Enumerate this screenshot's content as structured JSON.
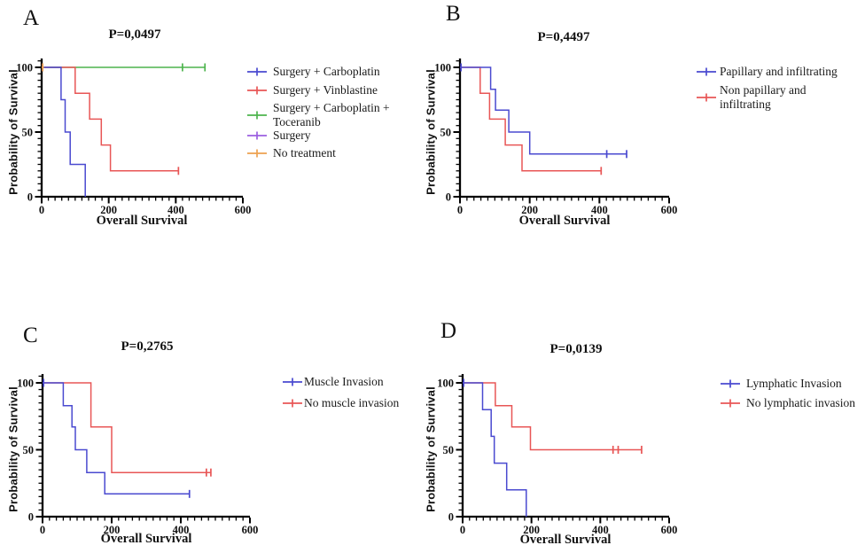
{
  "figure": {
    "background": "#ffffff",
    "axis_color": "#000000",
    "description_fields": {
      "x_axis_title": "Overall Survival",
      "y_axis_title": "Probability of Survival"
    }
  },
  "chart_data": [
    {
      "type": "line",
      "subtype": "kaplan-meier-step",
      "panel": "A",
      "letter": "A",
      "title": "P=0,0497",
      "xlabel": "Overall Survival",
      "ylabel": "Probability of Survival",
      "xlim": [
        0,
        600
      ],
      "ylim": [
        0,
        100
      ],
      "xticks": [
        0,
        200,
        400,
        600
      ],
      "yticks": [
        0,
        50,
        100
      ],
      "x_minor_step": 20,
      "y_minor_step": 5,
      "grid": false,
      "legend_position": "right",
      "legend": [
        {
          "label": "Surgery + Carboplatin",
          "color": "#4a4ad0"
        },
        {
          "label": "Surgery + Vinblastine",
          "color": "#e85656"
        },
        {
          "label": "Surgery + Carboplatin +\nToceranib",
          "color": "#4db44d"
        },
        {
          "label": "Surgery",
          "color": "#9b5fe0"
        },
        {
          "label": "No treatment",
          "color": "#eda14f"
        }
      ],
      "series": [
        {
          "name": "Surgery + Carboplatin + Toceranib",
          "color": "#4db44d",
          "points": [
            [
              0,
              100
            ],
            [
              487,
              100
            ]
          ],
          "censors": [
            [
              420,
              100
            ],
            [
              487,
              100
            ]
          ]
        },
        {
          "name": "Surgery + Vinblastine",
          "color": "#e85656",
          "points": [
            [
              0,
              100
            ],
            [
              100,
              100
            ],
            [
              100,
              80
            ],
            [
              143,
              80
            ],
            [
              143,
              60
            ],
            [
              178,
              60
            ],
            [
              178,
              40
            ],
            [
              205,
              40
            ],
            [
              205,
              20
            ],
            [
              408,
              20
            ]
          ],
          "censors": [
            [
              408,
              20
            ]
          ]
        },
        {
          "name": "Surgery + Carboplatin",
          "color": "#4a4ad0",
          "points": [
            [
              0,
              100
            ],
            [
              58,
              100
            ],
            [
              58,
              75
            ],
            [
              70,
              75
            ],
            [
              70,
              50
            ],
            [
              85,
              50
            ],
            [
              85,
              25
            ],
            [
              130,
              25
            ],
            [
              130,
              0
            ]
          ],
          "censors": []
        },
        {
          "name": "Surgery",
          "color": "#9b5fe0",
          "points": [
            [
              0,
              100
            ],
            [
              7,
              100
            ]
          ],
          "censors": [
            [
              3,
              100
            ]
          ]
        },
        {
          "name": "No treatment",
          "color": "#eda14f",
          "points": [
            [
              0,
              100
            ],
            [
              7,
              100
            ]
          ],
          "censors": [
            [
              3,
              100
            ]
          ]
        }
      ]
    },
    {
      "type": "line",
      "subtype": "kaplan-meier-step",
      "panel": "B",
      "letter": "B",
      "title": "P=0,4497",
      "xlabel": "Overall Survival",
      "ylabel": "Probability of Survival",
      "xlim": [
        0,
        600
      ],
      "ylim": [
        0,
        100
      ],
      "xticks": [
        0,
        200,
        400,
        600
      ],
      "yticks": [
        0,
        50,
        100
      ],
      "x_minor_step": 20,
      "y_minor_step": 5,
      "grid": false,
      "legend_position": "right",
      "legend": [
        {
          "label": "Papillary and infiltrating",
          "color": "#4a4ad0"
        },
        {
          "label": "Non papillary and\ninfiltrating",
          "color": "#e85656"
        }
      ],
      "series": [
        {
          "name": "Non papillary and infiltrating",
          "color": "#e85656",
          "points": [
            [
              0,
              100
            ],
            [
              58,
              100
            ],
            [
              58,
              80
            ],
            [
              85,
              80
            ],
            [
              85,
              60
            ],
            [
              130,
              60
            ],
            [
              130,
              40
            ],
            [
              178,
              40
            ],
            [
              178,
              20
            ],
            [
              405,
              20
            ]
          ],
          "censors": [
            [
              405,
              20
            ]
          ]
        },
        {
          "name": "Papillary and infiltrating",
          "color": "#4a4ad0",
          "points": [
            [
              0,
              100
            ],
            [
              88,
              100
            ],
            [
              88,
              83
            ],
            [
              102,
              83
            ],
            [
              102,
              67
            ],
            [
              140,
              67
            ],
            [
              140,
              50
            ],
            [
              200,
              50
            ],
            [
              200,
              33
            ],
            [
              478,
              33
            ]
          ],
          "censors": [
            [
              3,
              100
            ],
            [
              421,
              33
            ],
            [
              478,
              33
            ]
          ]
        }
      ]
    },
    {
      "type": "line",
      "subtype": "kaplan-meier-step",
      "panel": "C",
      "letter": "C",
      "title": "P=0,2765",
      "xlabel": "Overall Survival",
      "ylabel": "Probability of Survival",
      "xlim": [
        0,
        600
      ],
      "ylim": [
        0,
        100
      ],
      "xticks": [
        0,
        200,
        400,
        600
      ],
      "yticks": [
        0,
        50,
        100
      ],
      "x_minor_step": 20,
      "y_minor_step": 5,
      "grid": false,
      "legend_position": "right",
      "legend": [
        {
          "label": "Muscle Invasion",
          "color": "#4a4ad0"
        },
        {
          "label": "No muscle invasion",
          "color": "#e85656"
        }
      ],
      "series": [
        {
          "name": "No muscle invasion",
          "color": "#e85656",
          "points": [
            [
              0,
              100
            ],
            [
              140,
              100
            ],
            [
              140,
              67
            ],
            [
              200,
              67
            ],
            [
              200,
              33
            ],
            [
              487,
              33
            ]
          ],
          "censors": [
            [
              474,
              33
            ],
            [
              487,
              33
            ]
          ]
        },
        {
          "name": "Muscle Invasion",
          "color": "#4a4ad0",
          "points": [
            [
              0,
              100
            ],
            [
              60,
              100
            ],
            [
              60,
              83
            ],
            [
              85,
              83
            ],
            [
              85,
              67
            ],
            [
              95,
              67
            ],
            [
              95,
              50
            ],
            [
              128,
              50
            ],
            [
              128,
              33
            ],
            [
              180,
              33
            ],
            [
              180,
              17
            ],
            [
              425,
              17
            ]
          ],
          "censors": [
            [
              3,
              100
            ],
            [
              425,
              17
            ]
          ]
        }
      ]
    },
    {
      "type": "line",
      "subtype": "kaplan-meier-step",
      "panel": "D",
      "letter": "D",
      "title": "P=0,0139",
      "xlabel": "Overall Survival",
      "ylabel": "Probability of Survival",
      "xlim": [
        0,
        600
      ],
      "ylim": [
        0,
        100
      ],
      "xticks": [
        0,
        200,
        400,
        600
      ],
      "yticks": [
        0,
        50,
        100
      ],
      "x_minor_step": 20,
      "y_minor_step": 5,
      "grid": false,
      "legend_position": "right",
      "legend": [
        {
          "label": "Lymphatic Invasion",
          "color": "#4a4ad0"
        },
        {
          "label": "No lymphatic invasion",
          "color": "#e85656"
        }
      ],
      "series": [
        {
          "name": "No lymphatic invasion",
          "color": "#e85656",
          "points": [
            [
              0,
              100
            ],
            [
              95,
              100
            ],
            [
              95,
              83
            ],
            [
              143,
              83
            ],
            [
              143,
              67
            ],
            [
              197,
              67
            ],
            [
              197,
              50
            ],
            [
              520,
              50
            ]
          ],
          "censors": [
            [
              437,
              50
            ],
            [
              452,
              50
            ],
            [
              520,
              50
            ]
          ]
        },
        {
          "name": "Lymphatic Invasion",
          "color": "#4a4ad0",
          "points": [
            [
              0,
              100
            ],
            [
              58,
              100
            ],
            [
              58,
              80
            ],
            [
              83,
              80
            ],
            [
              83,
              60
            ],
            [
              92,
              60
            ],
            [
              92,
              40
            ],
            [
              128,
              40
            ],
            [
              128,
              20
            ],
            [
              185,
              20
            ],
            [
              185,
              0
            ]
          ],
          "censors": [
            [
              3,
              100
            ]
          ]
        }
      ]
    }
  ]
}
